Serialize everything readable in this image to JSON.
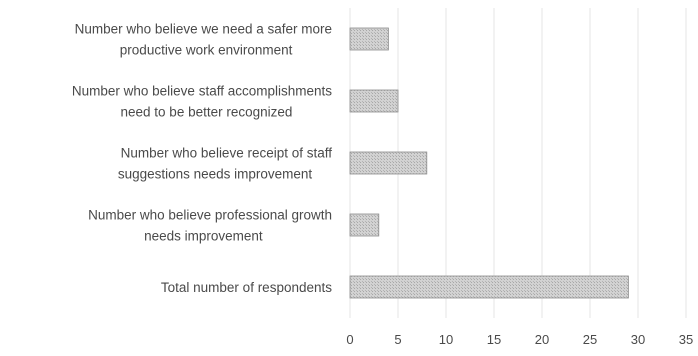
{
  "chart_data": {
    "type": "bar",
    "orientation": "horizontal",
    "title": "",
    "xlabel": "",
    "ylabel": "",
    "categories": [
      [
        "Number who believe we need a safer more",
        "productive work environment"
      ],
      [
        "Number who believe staff accomplishments",
        "need to be better recognized"
      ],
      [
        "Number who believe receipt of staff",
        "suggestions needs improvement"
      ],
      [
        "Number who believe professional growth",
        "needs improvement"
      ],
      [
        "Total number of respondents"
      ]
    ],
    "values": [
      4,
      5,
      8,
      3,
      29
    ],
    "xlim": [
      0,
      35
    ],
    "xticks": [
      "0",
      "5",
      "10",
      "15",
      "20",
      "25",
      "30",
      "35"
    ],
    "grid": "vertical",
    "legend": "none",
    "bar_color": "#c8c8c8"
  }
}
